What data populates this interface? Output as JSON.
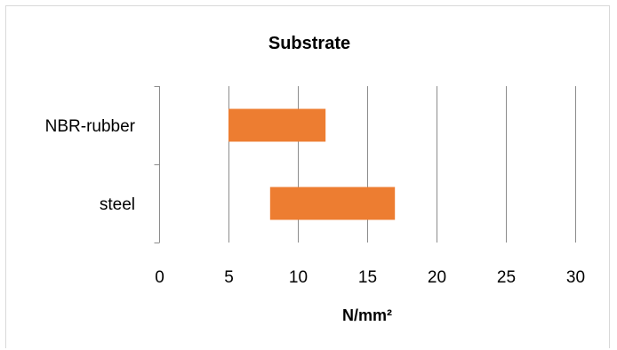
{
  "chart_data": {
    "type": "bar",
    "orientation": "horizontal",
    "subtype": "floating-range",
    "title": "Substrate",
    "xlabel": "N/mm²",
    "ylabel": "",
    "xlim": [
      0,
      30
    ],
    "x_ticks": [
      0,
      5,
      10,
      15,
      20,
      25,
      30
    ],
    "x_tick_labels": [
      "0",
      "5",
      "10",
      "15",
      "20",
      "25",
      "30"
    ],
    "categories": [
      "NBR-rubber",
      "steel"
    ],
    "ranges": [
      {
        "category": "NBR-rubber",
        "start": 5,
        "end": 12
      },
      {
        "category": "steel",
        "start": 8,
        "end": 17
      }
    ],
    "bar_color": "#ED7D31",
    "grid": true,
    "legend": "none"
  }
}
